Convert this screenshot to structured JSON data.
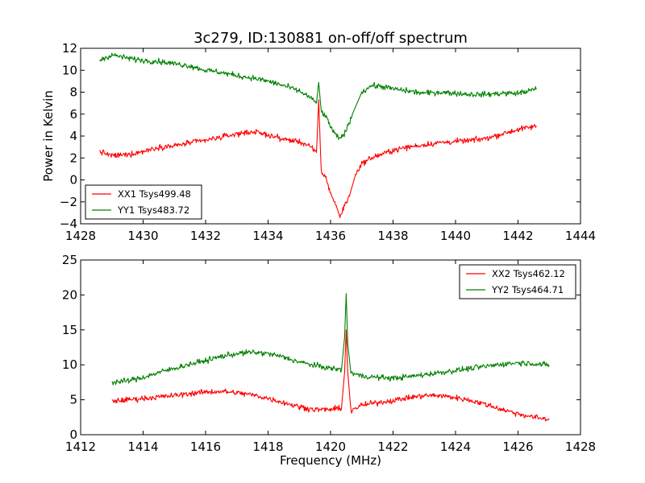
{
  "figure": {
    "title": "3c279, ID:130881 on-off/off spectrum",
    "ylabel": "Power in Kelvin",
    "xlabel": "Frequency (MHz)"
  },
  "chart_data": [
    {
      "type": "line",
      "title": "3c279, ID:130881 on-off/off spectrum",
      "ylabel": "Power in Kelvin",
      "xlabel": "",
      "xlim": [
        1428,
        1444
      ],
      "ylim": [
        -4,
        12
      ],
      "xticks": [
        1428,
        1430,
        1432,
        1434,
        1436,
        1438,
        1440,
        1442,
        1444
      ],
      "yticks": [
        -4,
        -2,
        0,
        2,
        4,
        6,
        8,
        10,
        12
      ],
      "grid": false,
      "legend": "lower-left",
      "series": [
        {
          "name": "XX1 Tsys499.48",
          "color": "#ff0000",
          "points": [
            [
              1428.6,
              2.6
            ],
            [
              1429.0,
              2.2
            ],
            [
              1429.5,
              2.3
            ],
            [
              1430.0,
              2.6
            ],
            [
              1430.5,
              3.0
            ],
            [
              1431.0,
              3.1
            ],
            [
              1431.5,
              3.4
            ],
            [
              1432.0,
              3.6
            ],
            [
              1432.5,
              3.9
            ],
            [
              1433.0,
              4.2
            ],
            [
              1433.5,
              4.4
            ],
            [
              1434.0,
              4.1
            ],
            [
              1434.5,
              3.7
            ],
            [
              1435.0,
              3.5
            ],
            [
              1435.3,
              3.1
            ],
            [
              1435.55,
              2.5
            ],
            [
              1435.62,
              7.3
            ],
            [
              1435.7,
              0.8
            ],
            [
              1435.85,
              0.2
            ],
            [
              1436.0,
              -1.2
            ],
            [
              1436.2,
              -2.5
            ],
            [
              1436.3,
              -3.4
            ],
            [
              1436.45,
              -2.3
            ],
            [
              1436.6,
              -1.5
            ],
            [
              1436.8,
              0.5
            ],
            [
              1437.0,
              1.5
            ],
            [
              1437.3,
              2.0
            ],
            [
              1437.7,
              2.4
            ],
            [
              1438.0,
              2.7
            ],
            [
              1438.5,
              3.0
            ],
            [
              1439.0,
              3.2
            ],
            [
              1439.5,
              3.4
            ],
            [
              1440.0,
              3.5
            ],
            [
              1440.5,
              3.6
            ],
            [
              1441.0,
              3.8
            ],
            [
              1441.5,
              4.2
            ],
            [
              1442.0,
              4.6
            ],
            [
              1442.6,
              4.9
            ]
          ]
        },
        {
          "name": "YY1 Tsys483.72",
          "color": "#008000",
          "points": [
            [
              1428.6,
              10.9
            ],
            [
              1429.0,
              11.4
            ],
            [
              1429.5,
              11.1
            ],
            [
              1430.0,
              10.9
            ],
            [
              1430.5,
              10.8
            ],
            [
              1431.0,
              10.6
            ],
            [
              1431.5,
              10.4
            ],
            [
              1432.0,
              10.0
            ],
            [
              1432.5,
              9.8
            ],
            [
              1433.0,
              9.5
            ],
            [
              1433.5,
              9.3
            ],
            [
              1434.0,
              9.0
            ],
            [
              1434.5,
              8.6
            ],
            [
              1435.0,
              8.1
            ],
            [
              1435.3,
              7.6
            ],
            [
              1435.55,
              7.0
            ],
            [
              1435.62,
              8.9
            ],
            [
              1435.7,
              6.3
            ],
            [
              1435.9,
              5.5
            ],
            [
              1436.1,
              4.3
            ],
            [
              1436.3,
              3.7
            ],
            [
              1436.5,
              4.5
            ],
            [
              1436.7,
              6.0
            ],
            [
              1437.0,
              8.0
            ],
            [
              1437.3,
              8.6
            ],
            [
              1437.7,
              8.5
            ],
            [
              1438.0,
              8.3
            ],
            [
              1438.5,
              8.1
            ],
            [
              1439.0,
              7.9
            ],
            [
              1439.5,
              8.0
            ],
            [
              1440.0,
              7.9
            ],
            [
              1440.5,
              7.8
            ],
            [
              1441.0,
              7.8
            ],
            [
              1441.5,
              7.9
            ],
            [
              1442.0,
              7.9
            ],
            [
              1442.6,
              8.3
            ]
          ]
        }
      ]
    },
    {
      "type": "line",
      "title": "",
      "ylabel": "",
      "xlabel": "Frequency (MHz)",
      "xlim": [
        1412,
        1428
      ],
      "ylim": [
        0,
        25
      ],
      "xticks": [
        1412,
        1414,
        1416,
        1418,
        1420,
        1422,
        1424,
        1426,
        1428
      ],
      "yticks": [
        0,
        5,
        10,
        15,
        20,
        25
      ],
      "grid": false,
      "legend": "upper-right",
      "series": [
        {
          "name": "XX2 Tsys462.12",
          "color": "#ff0000",
          "points": [
            [
              1413.0,
              4.8
            ],
            [
              1413.5,
              5.0
            ],
            [
              1414.0,
              5.2
            ],
            [
              1414.5,
              5.4
            ],
            [
              1415.0,
              5.6
            ],
            [
              1415.5,
              5.9
            ],
            [
              1416.0,
              6.1
            ],
            [
              1416.5,
              6.2
            ],
            [
              1417.0,
              6.0
            ],
            [
              1417.5,
              5.7
            ],
            [
              1418.0,
              5.2
            ],
            [
              1418.5,
              4.6
            ],
            [
              1419.0,
              4.0
            ],
            [
              1419.5,
              3.6
            ],
            [
              1420.0,
              3.6
            ],
            [
              1420.35,
              3.8
            ],
            [
              1420.45,
              9.0
            ],
            [
              1420.5,
              15.0
            ],
            [
              1420.55,
              9.0
            ],
            [
              1420.65,
              3.5
            ],
            [
              1421.0,
              4.2
            ],
            [
              1421.5,
              4.6
            ],
            [
              1422.0,
              4.9
            ],
            [
              1422.5,
              5.3
            ],
            [
              1423.0,
              5.6
            ],
            [
              1423.5,
              5.6
            ],
            [
              1424.0,
              5.3
            ],
            [
              1424.5,
              4.9
            ],
            [
              1425.0,
              4.3
            ],
            [
              1425.5,
              3.6
            ],
            [
              1426.0,
              3.0
            ],
            [
              1426.5,
              2.5
            ],
            [
              1427.0,
              2.2
            ]
          ]
        },
        {
          "name": "YY2 Tsys464.71",
          "color": "#008000",
          "points": [
            [
              1413.0,
              7.5
            ],
            [
              1413.5,
              7.7
            ],
            [
              1414.0,
              8.2
            ],
            [
              1414.5,
              8.9
            ],
            [
              1415.0,
              9.5
            ],
            [
              1415.5,
              10.1
            ],
            [
              1416.0,
              10.6
            ],
            [
              1416.5,
              11.2
            ],
            [
              1417.0,
              11.6
            ],
            [
              1417.5,
              11.8
            ],
            [
              1418.0,
              11.6
            ],
            [
              1418.5,
              11.1
            ],
            [
              1419.0,
              10.4
            ],
            [
              1419.5,
              9.9
            ],
            [
              1420.0,
              9.5
            ],
            [
              1420.35,
              9.3
            ],
            [
              1420.45,
              14.0
            ],
            [
              1420.5,
              20.2
            ],
            [
              1420.55,
              13.0
            ],
            [
              1420.65,
              8.9
            ],
            [
              1421.0,
              8.4
            ],
            [
              1421.5,
              8.2
            ],
            [
              1422.0,
              8.1
            ],
            [
              1422.5,
              8.3
            ],
            [
              1423.0,
              8.6
            ],
            [
              1423.5,
              8.9
            ],
            [
              1424.0,
              9.2
            ],
            [
              1424.5,
              9.5
            ],
            [
              1425.0,
              9.8
            ],
            [
              1425.5,
              10.1
            ],
            [
              1426.0,
              10.3
            ],
            [
              1426.5,
              10.2
            ],
            [
              1427.0,
              9.9
            ]
          ]
        }
      ]
    }
  ]
}
